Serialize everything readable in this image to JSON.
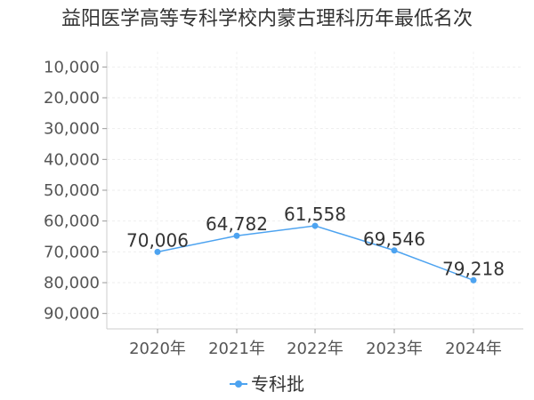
{
  "chart_data": {
    "type": "line",
    "title": "益阳医学高等专科学校内蒙古理科历年最低名次",
    "xlabel": "",
    "ylabel": "",
    "categories": [
      "2020年",
      "2021年",
      "2022年",
      "2023年",
      "2024年"
    ],
    "series": [
      {
        "name": "专科批",
        "values": [
          70006,
          64782,
          61558,
          69546,
          79218
        ],
        "labels": [
          "70,006",
          "64,782",
          "61,558",
          "69,546",
          "79,218"
        ],
        "color": "#4da3f0"
      }
    ],
    "y_ticks": [
      10000,
      20000,
      30000,
      40000,
      50000,
      60000,
      70000,
      80000,
      90000
    ],
    "y_tick_labels": [
      "10,000",
      "20,000",
      "30,000",
      "40,000",
      "50,000",
      "60,000",
      "70,000",
      "80,000",
      "90,000"
    ],
    "ylim": [
      5000,
      95000
    ],
    "y_inverted": true,
    "grid": true,
    "legend_position": "bottom-center"
  }
}
